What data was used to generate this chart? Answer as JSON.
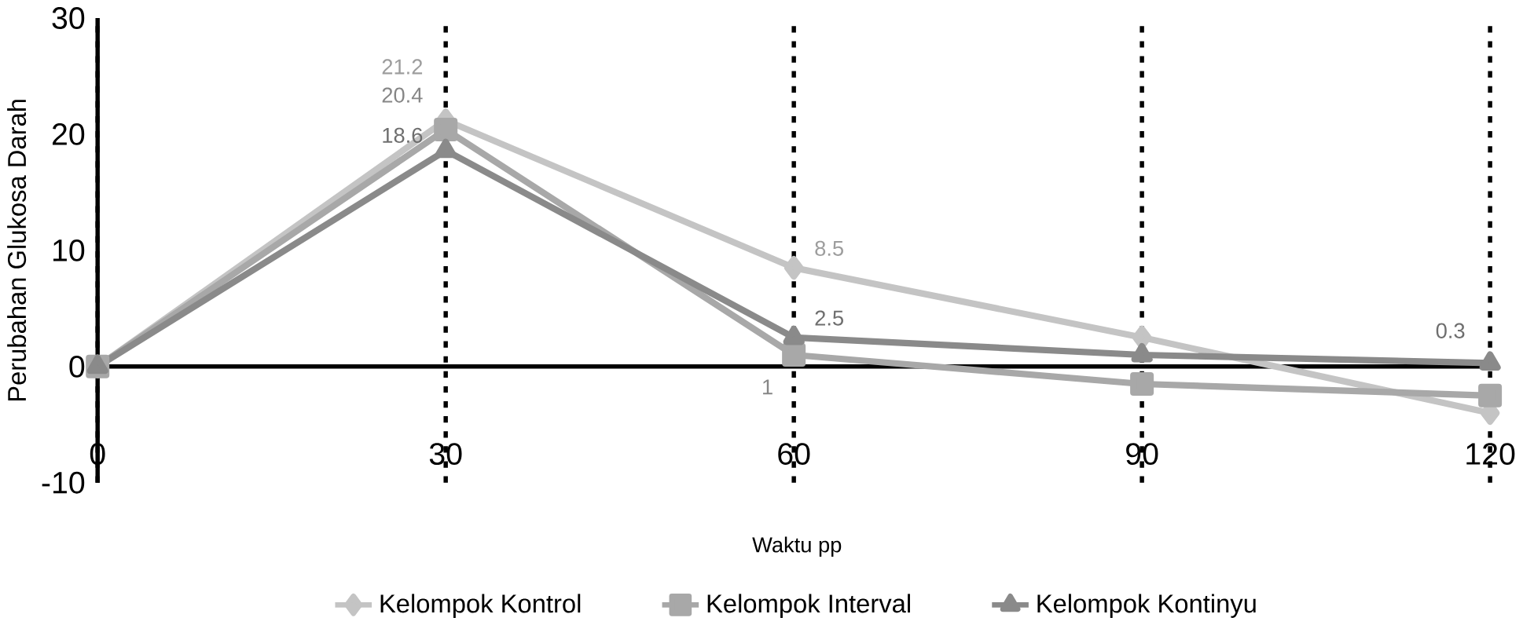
{
  "chart_data": {
    "type": "line",
    "xlabel": "Waktu pp",
    "ylabel": "Perubahan Glukosa Darah",
    "x": [
      0,
      30,
      60,
      90,
      120
    ],
    "series": [
      {
        "name": "Kelompok Kontrol",
        "color": "#c4c4c4",
        "marker": "diamond",
        "values": [
          0,
          21.2,
          8.5,
          2.5,
          -4
        ],
        "value_labels": [
          null,
          "21.2",
          "8.5",
          null,
          null
        ]
      },
      {
        "name": "Kelompok Interval",
        "color": "#a8a8a8",
        "marker": "square",
        "values": [
          0,
          20.4,
          1,
          -1.5,
          -2.5
        ],
        "value_labels": [
          null,
          "20.4",
          "1",
          null,
          null
        ]
      },
      {
        "name": "Kelompok Kontinyu",
        "color": "#8a8a8a",
        "marker": "triangle",
        "values": [
          0,
          18.6,
          2.5,
          1,
          0.3
        ],
        "value_labels": [
          null,
          "18.6",
          "2.5",
          null,
          "0.3"
        ]
      }
    ],
    "xlim": [
      0,
      120
    ],
    "ylim": [
      -10,
      30
    ],
    "xticks": [
      0,
      30,
      60,
      90,
      120
    ],
    "yticks": [
      -10,
      0,
      10,
      20,
      30
    ],
    "grid": "x",
    "legend": "bottom"
  }
}
